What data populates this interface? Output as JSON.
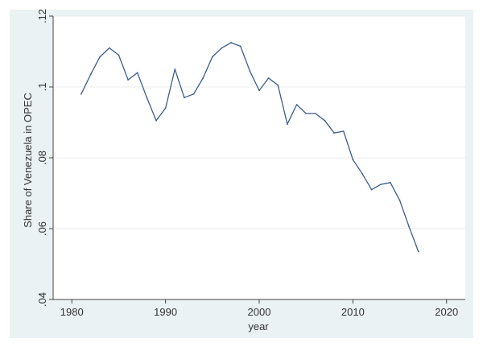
{
  "chart_data": {
    "type": "line",
    "xlabel": "year",
    "ylabel": "Share of Venezuela in OPEC",
    "xlim": [
      1978,
      2022
    ],
    "ylim": [
      0.04,
      0.12
    ],
    "x_ticks": [
      {
        "value": 1980,
        "label": "1980"
      },
      {
        "value": 1990,
        "label": "1990"
      },
      {
        "value": 2000,
        "label": "2000"
      },
      {
        "value": 2010,
        "label": "2010"
      },
      {
        "value": 2020,
        "label": "2020"
      }
    ],
    "y_ticks": [
      {
        "value": 0.04,
        "label": ".04"
      },
      {
        "value": 0.06,
        "label": ".06"
      },
      {
        "value": 0.08,
        "label": ".08"
      },
      {
        "value": 0.1,
        "label": ".1"
      },
      {
        "value": 0.12,
        "label": ".12"
      }
    ],
    "grid": "horizontal",
    "series": [
      {
        "color": "#3b5e8c",
        "x": [
          1981,
          1982,
          1983,
          1984,
          1985,
          1986,
          1987,
          1988,
          1989,
          1990,
          1991,
          1992,
          1993,
          1994,
          1995,
          1996,
          1997,
          1998,
          1999,
          2000,
          2001,
          2002,
          2003,
          2004,
          2005,
          2006,
          2007,
          2008,
          2009,
          2010,
          2011,
          2012,
          2013,
          2014,
          2015,
          2016,
          2017
        ],
        "y": [
          0.098,
          0.1035,
          0.1085,
          0.111,
          0.109,
          0.102,
          0.104,
          0.097,
          0.0905,
          0.094,
          0.105,
          0.097,
          0.098,
          0.1025,
          0.1085,
          0.111,
          0.1125,
          0.1115,
          0.1045,
          0.099,
          0.1025,
          0.1005,
          0.0895,
          0.095,
          0.0925,
          0.0925,
          0.0905,
          0.087,
          0.0875,
          0.0795,
          0.0755,
          0.071,
          0.0725,
          0.073,
          0.068,
          0.0605,
          0.0535
        ]
      }
    ]
  }
}
